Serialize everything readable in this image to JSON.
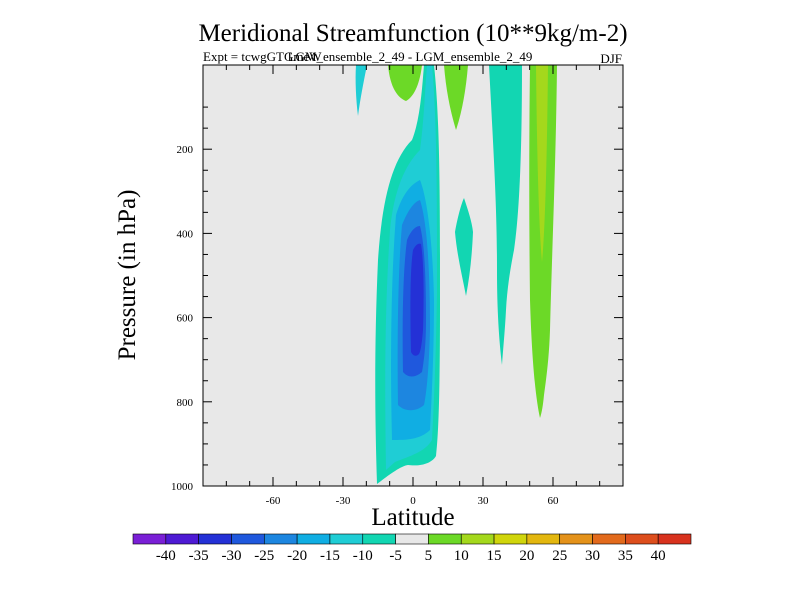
{
  "chart_data": {
    "type": "contour",
    "title": "Meridional Streamfunction (10**9kg/m-2)",
    "subtitle_left": "Expt = tcwgGTGmeW",
    "subtitle_center": "LGM_ensemble_2_49 - LGM_ensemble_2_49",
    "season": "DJF",
    "xlabel": "Latitude",
    "ylabel": "Pressure (in hPa)",
    "xlim": [
      -90,
      90
    ],
    "ylim": [
      0,
      1000
    ],
    "y_inverted": true,
    "xticks": [
      -60,
      -30,
      0,
      30,
      60
    ],
    "yticks": [
      200,
      400,
      600,
      800,
      1000
    ],
    "colorbar": {
      "levels": [
        -40,
        -35,
        -30,
        -25,
        -20,
        -15,
        -10,
        -5,
        5,
        10,
        15,
        20,
        25,
        30,
        35,
        40
      ],
      "colors": [
        "#7a1fd6",
        "#4e1ad4",
        "#2431d6",
        "#1f58dd",
        "#1d86e0",
        "#10aee3",
        "#1fcdd5",
        "#12d6b2",
        "#e8e8e8",
        "#6cd927",
        "#a4d81c",
        "#d0d50c",
        "#e3b70f",
        "#e4921a",
        "#e26a1c",
        "#dd4e1d",
        "#d8321e"
      ]
    },
    "cells": [
      {
        "name": "negative-cell",
        "value_range": [
          -35,
          -10
        ],
        "lat_range": [
          -10,
          9
        ],
        "pressure_range": [
          10,
          950
        ]
      },
      {
        "name": "negative-cell-east",
        "value_range": [
          -10,
          -5
        ],
        "lat_range": [
          35,
          47
        ],
        "pressure_range": [
          10,
          750
        ]
      },
      {
        "name": "positive-cell-upper",
        "value_range": [
          5,
          10
        ],
        "lat_range": [
          -5,
          6
        ],
        "pressure_range": [
          10,
          45
        ]
      },
      {
        "name": "positive-cell",
        "value_range": [
          5,
          15
        ],
        "lat_range": [
          49,
          58
        ],
        "pressure_range": [
          10,
          830
        ]
      }
    ],
    "background_value": 0
  }
}
